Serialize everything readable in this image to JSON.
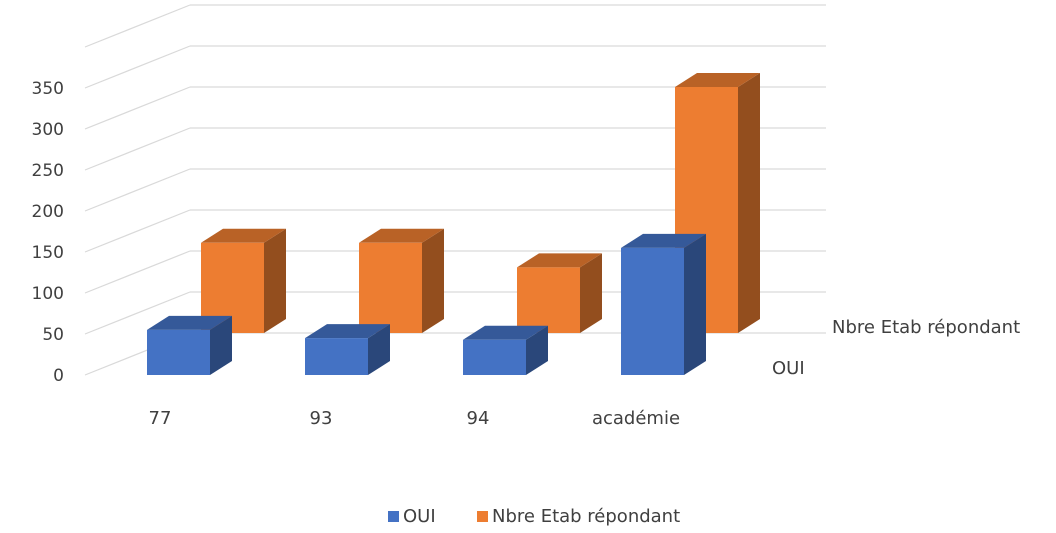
{
  "chart_data": {
    "type": "bar",
    "variant": "3d-column",
    "categories": [
      "77",
      "93",
      "94",
      "académie"
    ],
    "series": [
      {
        "name": "OUI",
        "color": "#4472c4",
        "values": [
          55,
          45,
          43,
          155
        ]
      },
      {
        "name": "Nbre Etab répondant",
        "color": "#ed7d31",
        "values": [
          110,
          110,
          80,
          300
        ]
      }
    ],
    "yticks": [
      0,
      50,
      100,
      150,
      200,
      250,
      300,
      350
    ],
    "ylim": [
      0,
      400
    ],
    "grid": true,
    "legend": "bottom",
    "title": "",
    "xlabel": "",
    "ylabel": ""
  }
}
